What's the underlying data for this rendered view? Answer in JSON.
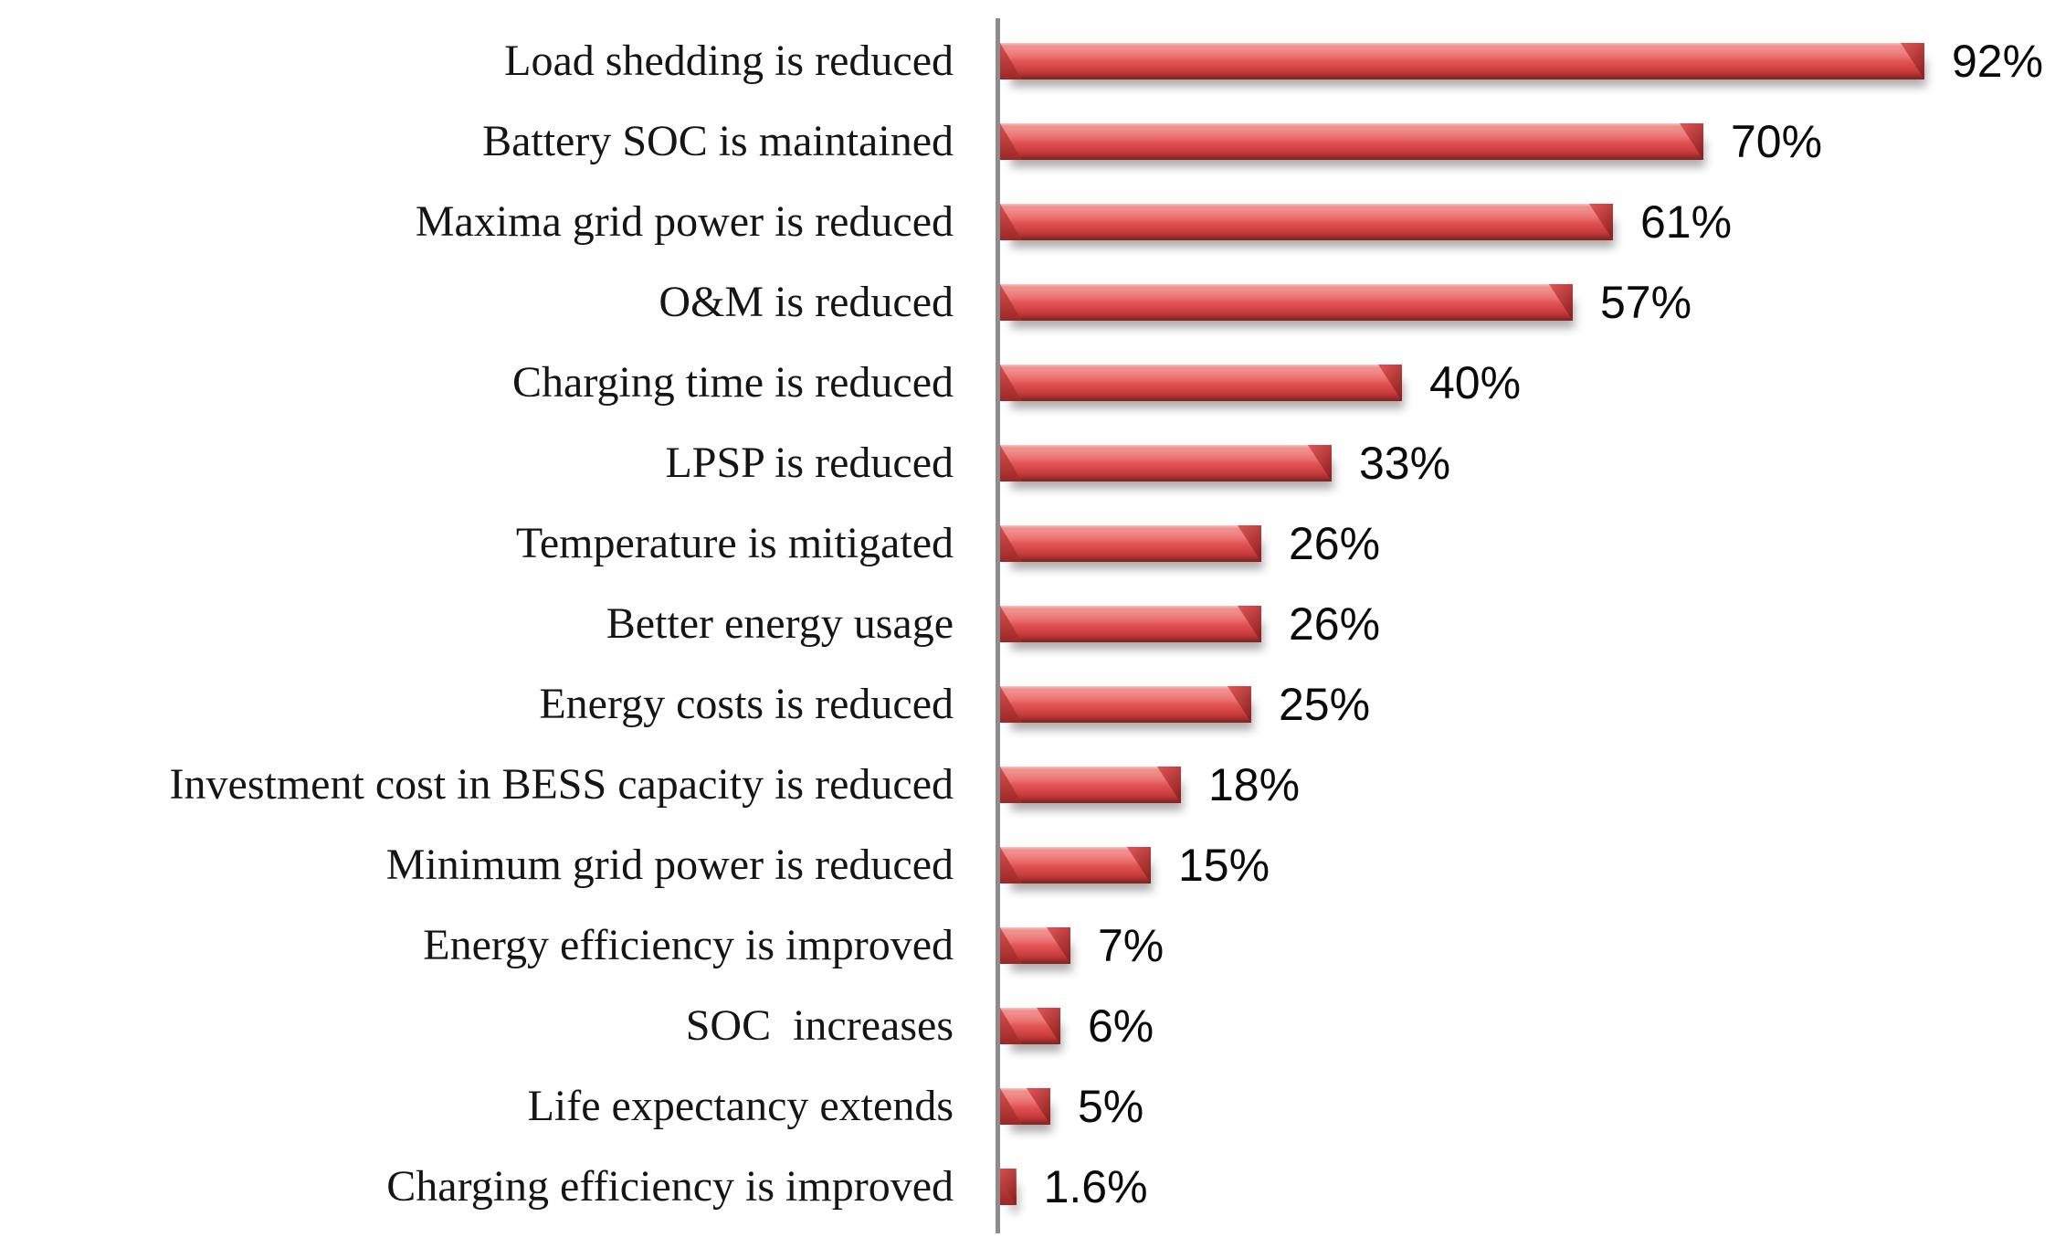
{
  "chart_data": {
    "type": "bar",
    "orientation": "horizontal",
    "title": "",
    "categories": [
      "Load shedding is reduced",
      "Battery SOC is maintained",
      "Maxima grid power is reduced",
      "O&M is reduced",
      "Charging time is reduced",
      "LPSP is reduced",
      "Temperature is mitigated",
      "Better energy usage",
      "Energy costs is reduced",
      "Investment cost in BESS capacity is reduced",
      "Minimum grid power is reduced",
      "Energy efficiency is improved",
      "SOC  increases",
      "Life expectancy extends",
      "Charging efficiency is improved"
    ],
    "values": [
      92,
      70,
      61,
      57,
      40,
      33,
      26,
      26,
      25,
      18,
      15,
      7,
      6,
      5,
      1.6
    ],
    "value_labels": [
      "92%",
      "70%",
      "61%",
      "57%",
      "40%",
      "33%",
      "26%",
      "26%",
      "25%",
      "18%",
      "15%",
      "7%",
      "6%",
      "5%",
      "1.6%"
    ],
    "xlabel": "",
    "ylabel": "",
    "xlim": [
      0,
      100
    ],
    "grid": false,
    "legend": false,
    "data_labels": "outside-end",
    "bar_color": "#e15454",
    "bar_highlight_color": "#f09191",
    "bar_dark_color": "#8f2424",
    "axis_color": "#8c8c8c",
    "text_color": "#151515"
  }
}
